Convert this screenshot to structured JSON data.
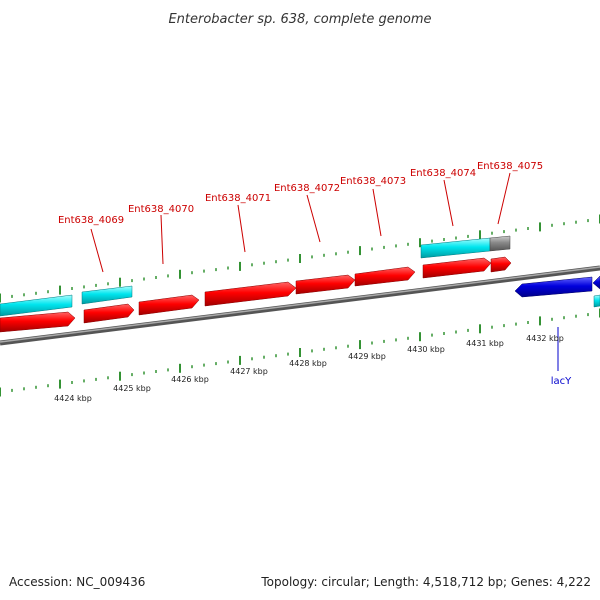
{
  "title": "Enterobacter sp. 638, complete genome",
  "footer": {
    "accession": "Accession: NC_009436",
    "summary": "Topology: circular; Length: 4,518,712 bp; Genes: 4,222"
  },
  "gene_labels": [
    {
      "name": "Ent638_4069"
    },
    {
      "name": "Ent638_4070"
    },
    {
      "name": "Ent638_4071"
    },
    {
      "name": "Ent638_4072"
    },
    {
      "name": "Ent638_4073"
    },
    {
      "name": "Ent638_4074"
    },
    {
      "name": "Ent638_4075"
    },
    {
      "name": "lacY"
    }
  ],
  "kbp_ticks": [
    "4424 kbp",
    "4425 kbp",
    "4426 kbp",
    "4427 kbp",
    "4428 kbp",
    "4429 kbp",
    "4430 kbp",
    "4431 kbp",
    "4432 kbp"
  ],
  "colors": {
    "forward_cds": "#ff0000",
    "forward_gene": "#00e5ee",
    "pseudo": "#888888",
    "reverse_cds": "#0000dd",
    "tick": "#007700",
    "backbone": "#777777",
    "label_red": "#cc0000",
    "label_blue": "#0000cc"
  }
}
